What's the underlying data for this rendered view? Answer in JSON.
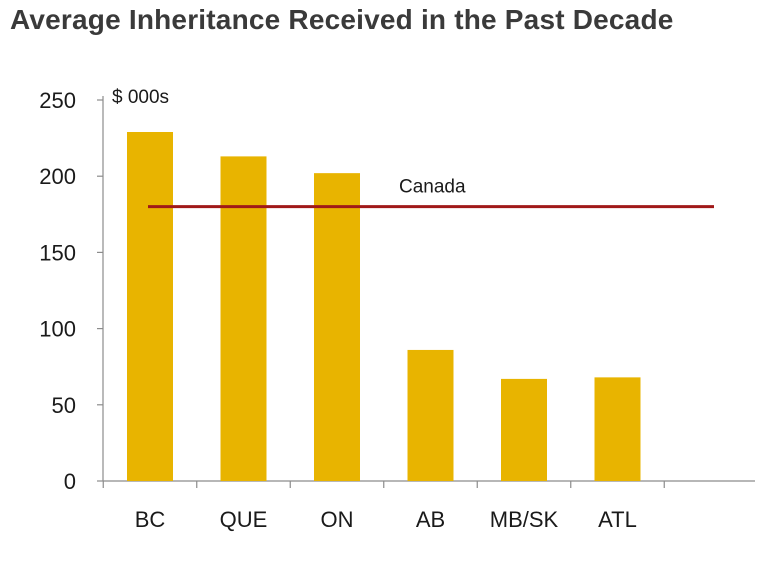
{
  "chart_data": {
    "type": "bar",
    "title": "Average Inheritance Received in the Past Decade",
    "unit_label": "$ 000s",
    "categories": [
      "BC",
      "QUE",
      "ON",
      "AB",
      "MB/SK",
      "ATL"
    ],
    "values": [
      229,
      213,
      202,
      86,
      67,
      68
    ],
    "ylim": [
      0,
      250
    ],
    "yticks": [
      0,
      50,
      100,
      150,
      200,
      250
    ],
    "reference_line": {
      "label": "Canada",
      "value": 180
    },
    "grid": false,
    "legend": "none",
    "bar_color": "#E8B400",
    "line_color": "#A01818"
  }
}
